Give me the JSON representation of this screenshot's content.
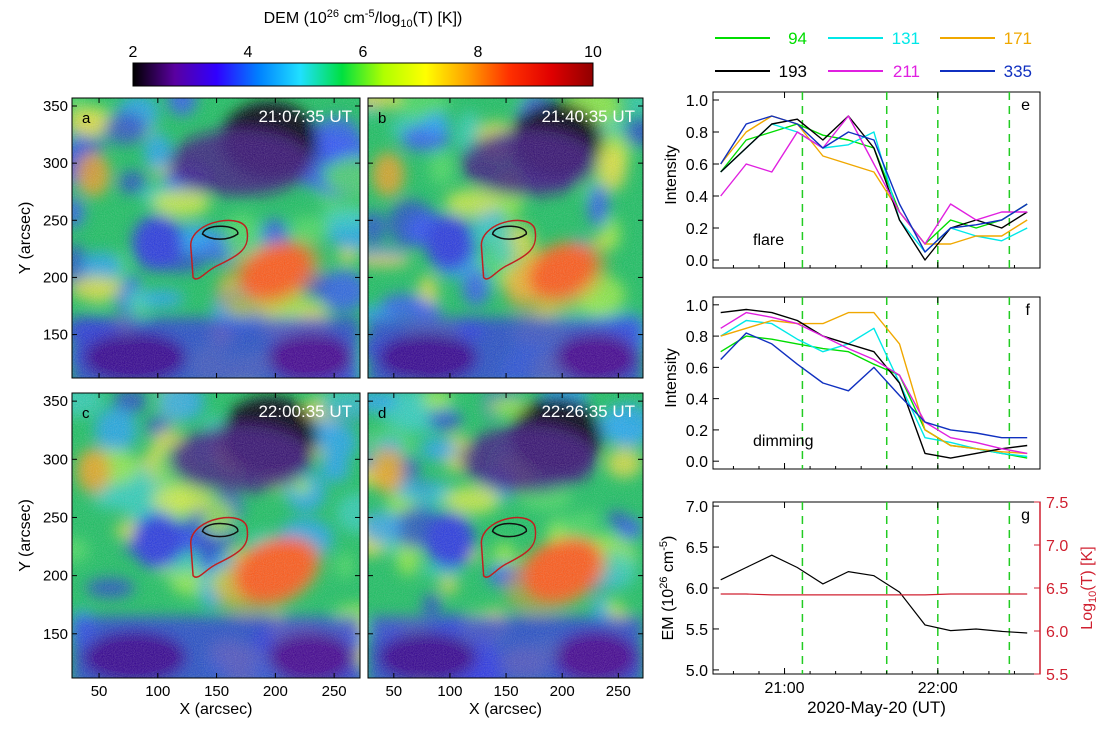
{
  "colorbar": {
    "title_main": "DEM (10",
    "title_exp1": "26",
    "title_mid": " cm",
    "title_exp2": "-5",
    "title_mid2": "/log",
    "title_sub": "10",
    "title_end": "(T) [K])",
    "ticks": [
      "2",
      "4",
      "6",
      "8",
      "10"
    ],
    "colors": [
      "#000000",
      "#5a00a0",
      "#3000ff",
      "#0080ff",
      "#20e0ff",
      "#00e040",
      "#b0ff00",
      "#ffff00",
      "#ffa000",
      "#ff3000",
      "#e00000",
      "#900000"
    ]
  },
  "legend": [
    {
      "label": "94",
      "color": "#00dd00"
    },
    {
      "label": "131",
      "color": "#00e8e8"
    },
    {
      "label": "171",
      "color": "#f0a800"
    },
    {
      "label": "193",
      "color": "#000000"
    },
    {
      "label": "211",
      "color": "#e020e0"
    },
    {
      "label": "335",
      "color": "#1030c0"
    }
  ],
  "maps": {
    "panels": [
      {
        "letter": "a",
        "time": "21:07:35 UT"
      },
      {
        "letter": "b",
        "time": "21:40:35 UT"
      },
      {
        "letter": "c",
        "time": "22:00:35 UT"
      },
      {
        "letter": "d",
        "time": "22:26:35 UT"
      }
    ],
    "x_ticks": [
      "50",
      "100",
      "150",
      "200",
      "250"
    ],
    "y_ticks": [
      "350",
      "300",
      "250",
      "200",
      "150"
    ],
    "x_label": "X (arcsec)",
    "y_label": "Y (arcsec)"
  },
  "chart_data": [
    {
      "type": "line",
      "panel": "e",
      "annotation": "flare",
      "ylabel": "Intensity",
      "ylim": [
        -0.05,
        1.05
      ],
      "yticks": [
        "0.0",
        "0.2",
        "0.4",
        "0.6",
        "0.8",
        "1.0"
      ],
      "x_minutes_after_20UT": [
        35,
        45,
        55,
        65,
        75,
        85,
        95,
        105,
        115,
        125,
        135,
        145,
        155
      ],
      "series": [
        {
          "name": "94",
          "values": [
            0.55,
            0.75,
            0.8,
            0.85,
            0.78,
            0.75,
            0.7,
            0.3,
            0.1,
            0.25,
            0.2,
            0.25,
            0.35
          ]
        },
        {
          "name": "131",
          "values": [
            0.55,
            0.7,
            0.85,
            0.8,
            0.7,
            0.72,
            0.8,
            0.25,
            0.05,
            0.2,
            0.15,
            0.12,
            0.2
          ]
        },
        {
          "name": "171",
          "values": [
            0.6,
            0.8,
            0.9,
            0.85,
            0.65,
            0.6,
            0.55,
            0.3,
            0.1,
            0.1,
            0.15,
            0.15,
            0.25
          ]
        },
        {
          "name": "193",
          "values": [
            0.55,
            0.7,
            0.85,
            0.88,
            0.75,
            0.9,
            0.7,
            0.25,
            0.0,
            0.2,
            0.25,
            0.2,
            0.3
          ]
        },
        {
          "name": "211",
          "values": [
            0.4,
            0.6,
            0.55,
            0.8,
            0.7,
            0.9,
            0.6,
            0.3,
            0.1,
            0.35,
            0.25,
            0.3,
            0.3
          ]
        },
        {
          "name": "335",
          "values": [
            0.6,
            0.85,
            0.9,
            0.85,
            0.7,
            0.8,
            0.75,
            0.35,
            0.05,
            0.2,
            0.22,
            0.25,
            0.35
          ]
        }
      ]
    },
    {
      "type": "line",
      "panel": "f",
      "annotation": "dimming",
      "ylabel": "Intensity",
      "ylim": [
        -0.05,
        1.05
      ],
      "yticks": [
        "0.0",
        "0.2",
        "0.4",
        "0.6",
        "0.8",
        "1.0"
      ],
      "x_minutes_after_20UT": [
        35,
        45,
        55,
        65,
        75,
        85,
        95,
        105,
        115,
        125,
        135,
        145,
        155
      ],
      "series": [
        {
          "name": "94",
          "values": [
            0.7,
            0.8,
            0.78,
            0.75,
            0.72,
            0.7,
            0.62,
            0.55,
            0.2,
            0.1,
            0.08,
            0.05,
            0.02
          ]
        },
        {
          "name": "131",
          "values": [
            0.8,
            0.9,
            0.88,
            0.78,
            0.7,
            0.75,
            0.85,
            0.5,
            0.15,
            0.12,
            0.08,
            0.05,
            0.03
          ]
        },
        {
          "name": "171",
          "values": [
            0.8,
            0.85,
            0.9,
            0.88,
            0.88,
            0.95,
            0.95,
            0.75,
            0.2,
            0.1,
            0.08,
            0.06,
            0.05
          ]
        },
        {
          "name": "193",
          "values": [
            0.95,
            0.97,
            0.95,
            0.9,
            0.8,
            0.75,
            0.7,
            0.5,
            0.05,
            0.02,
            0.05,
            0.08,
            0.1
          ]
        },
        {
          "name": "211",
          "values": [
            0.85,
            0.95,
            0.92,
            0.88,
            0.8,
            0.72,
            0.65,
            0.55,
            0.25,
            0.15,
            0.12,
            0.08,
            0.05
          ]
        },
        {
          "name": "335",
          "values": [
            0.65,
            0.82,
            0.75,
            0.62,
            0.5,
            0.45,
            0.6,
            0.42,
            0.25,
            0.2,
            0.18,
            0.15,
            0.15
          ]
        }
      ]
    },
    {
      "type": "line",
      "panel": "g",
      "ylabel_left": "EM (10",
      "ylabel_left_exp": "26",
      "ylabel_left_end": " cm",
      "ylabel_left_exp2": "-5",
      "ylabel_left_close": ")",
      "ylabel_right": "Log",
      "ylabel_right_sub": "10",
      "ylabel_right_end": "(T) [K]",
      "ylim_left": [
        4.95,
        7.05
      ],
      "ylim_right": [
        5.5,
        7.5
      ],
      "yticks_left": [
        "5.0",
        "5.5",
        "6.0",
        "6.5",
        "7.0"
      ],
      "yticks_right": [
        "5.5",
        "6.0",
        "6.5",
        "7.0",
        "7.5"
      ],
      "x_minutes_after_20UT": [
        35,
        45,
        55,
        65,
        75,
        85,
        95,
        105,
        115,
        125,
        135,
        145,
        155
      ],
      "em_values": [
        6.1,
        6.25,
        6.4,
        6.25,
        6.05,
        6.2,
        6.15,
        5.95,
        5.55,
        5.48,
        5.5,
        5.47,
        5.45
      ],
      "logT_values": [
        6.43,
        6.43,
        6.42,
        6.42,
        6.42,
        6.42,
        6.42,
        6.42,
        6.42,
        6.43,
        6.43,
        6.43,
        6.43
      ]
    }
  ],
  "shared_x": {
    "xlim_minutes_after_20UT": [
      32,
      160
    ],
    "tick_minutes": [
      60,
      120
    ],
    "tick_labels": [
      "21:00",
      "22:00"
    ],
    "x_label": "2020-May-20 (UT)",
    "marker_minutes": [
      67,
      100,
      120,
      148
    ]
  }
}
